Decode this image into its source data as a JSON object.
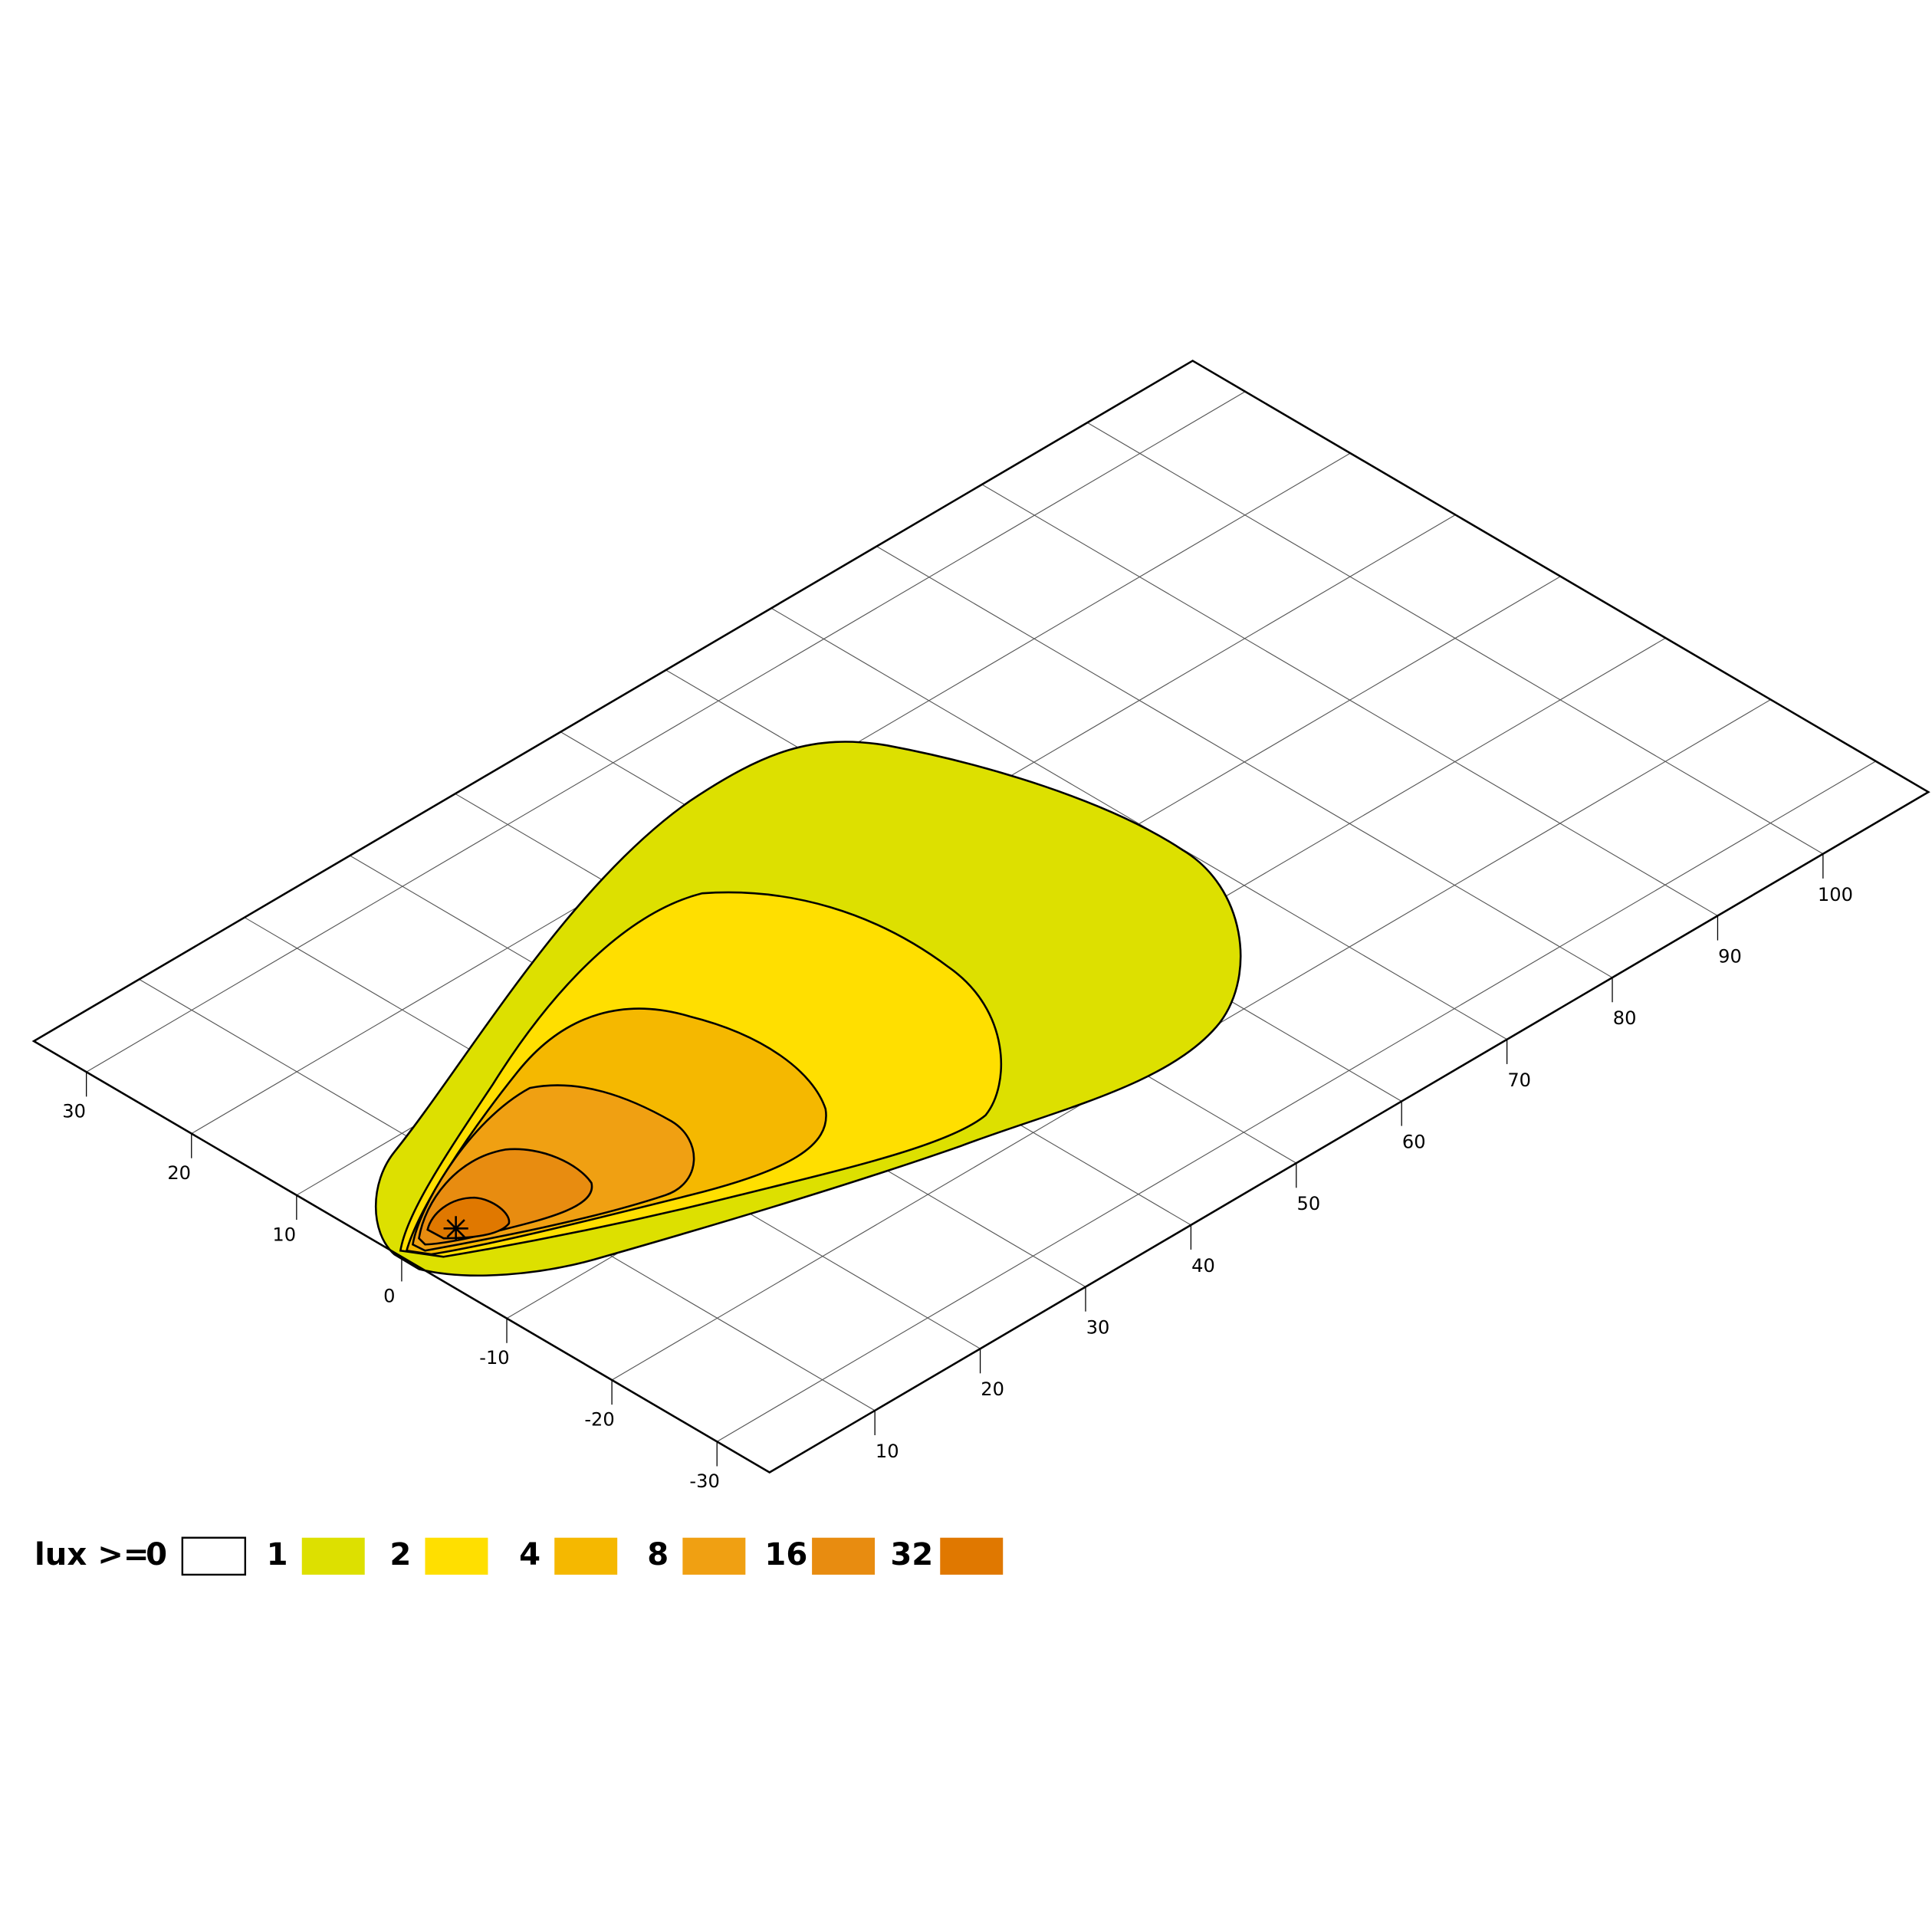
{
  "chart_data": {
    "type": "contour",
    "legend_title": "lux >=",
    "levels": [
      0,
      1,
      2,
      4,
      8,
      16,
      32
    ],
    "colors": [
      "#ffffff",
      "#dde000",
      "#ffdf00",
      "#f5b800",
      "#f0a012",
      "#e88c10",
      "#e07800"
    ],
    "xlim": [
      0,
      110
    ],
    "xticks": [
      10,
      20,
      30,
      40,
      50,
      60,
      70,
      80,
      90,
      100
    ],
    "ylim": [
      -35,
      35
    ],
    "yticks": [
      30,
      20,
      10,
      0,
      -10,
      -20,
      -30
    ],
    "grid": true
  }
}
